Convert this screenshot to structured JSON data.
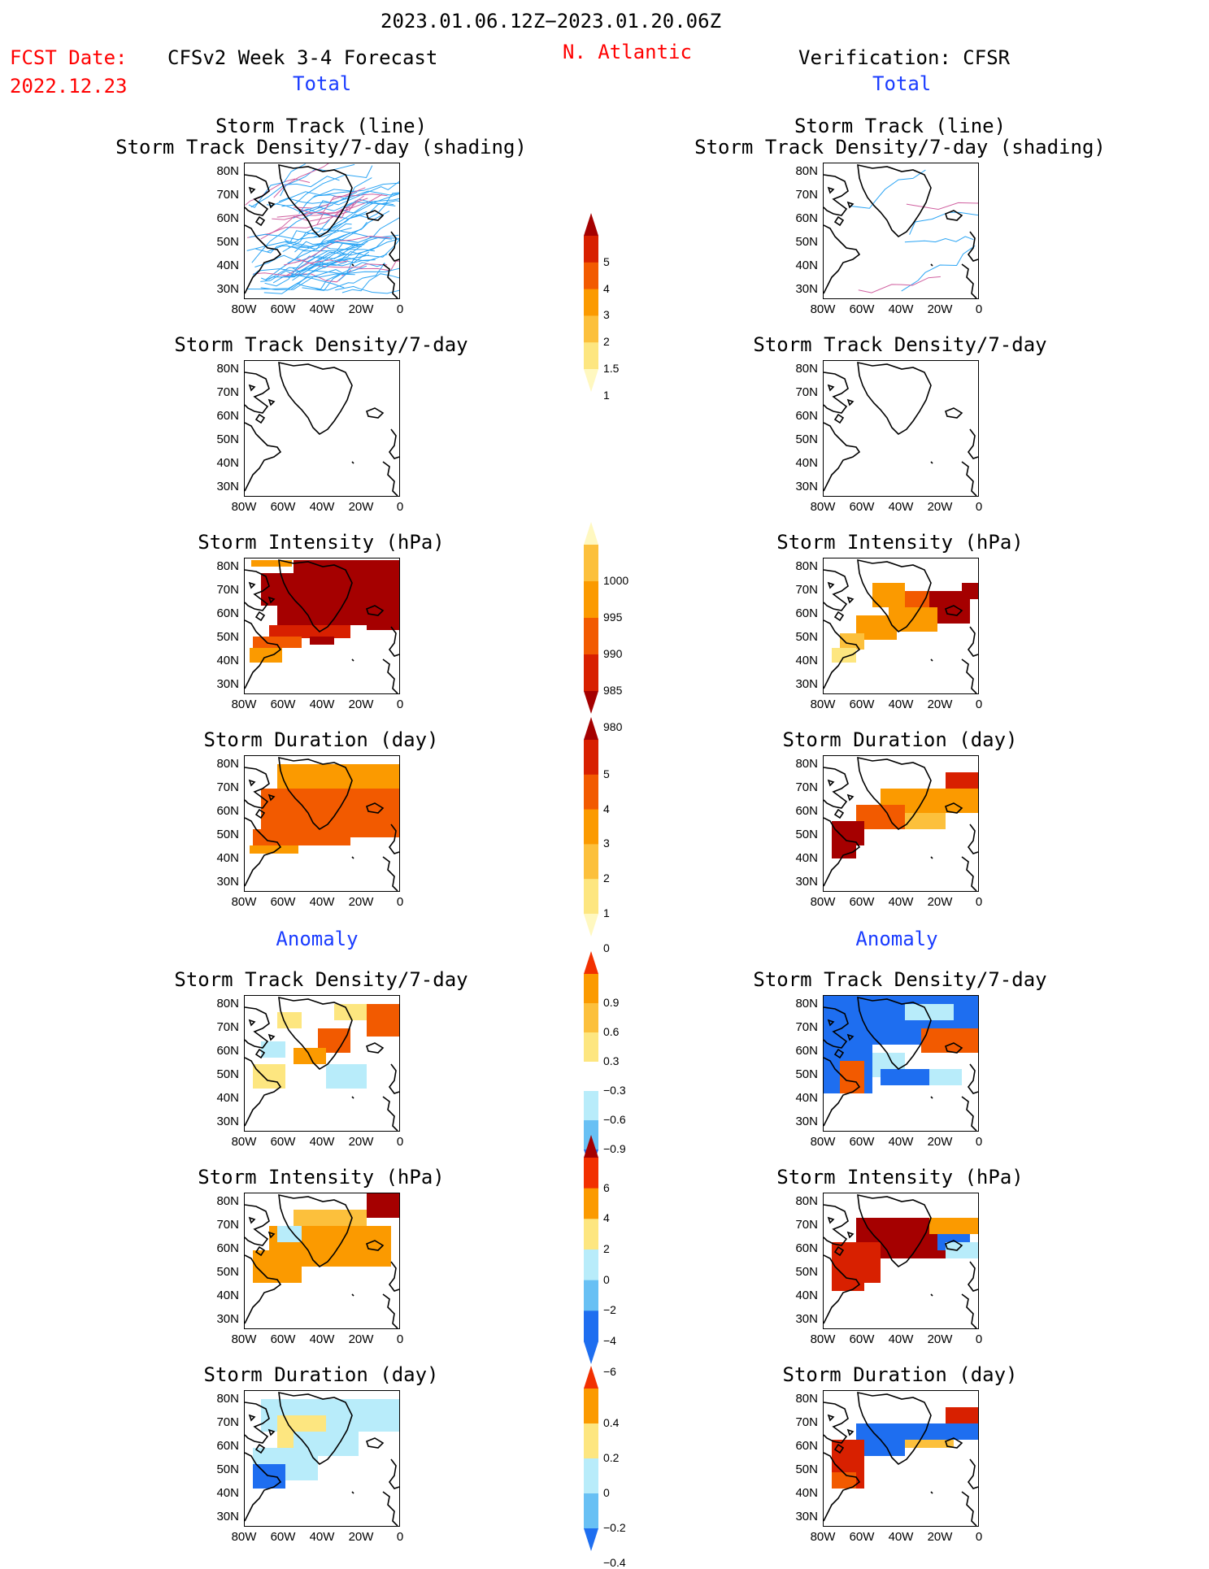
{
  "header": {
    "date_range": "2023.01.06.12Z−2023.01.20.06Z",
    "fcst_label": "FCST Date:",
    "fcst_date": "2022.12.23",
    "model_title": "CFSv2 Week 3-4 Forecast",
    "region": "N. Atlantic",
    "verification": "Verification: CFSR",
    "left_total": "Total",
    "right_total": "Total"
  },
  "section_labels": {
    "anomaly_left": "Anomaly",
    "anomaly_right": "Anomaly"
  },
  "axis": {
    "lat_labels": [
      "80N",
      "70N",
      "60N",
      "50N",
      "40N",
      "30N"
    ],
    "lon_labels": [
      "80W",
      "60W",
      "40W",
      "20W",
      "0"
    ]
  },
  "panels": [
    {
      "id": "total-track",
      "title_line1": "Storm Track (line)",
      "title_line2": "Storm Track Density/7-day (shading)"
    },
    {
      "id": "total-density",
      "title_line1": "",
      "title_line2": "Storm Track Density/7-day"
    },
    {
      "id": "total-intensity",
      "title_line1": "",
      "title_line2": "Storm Intensity (hPa)"
    },
    {
      "id": "total-duration",
      "title_line1": "",
      "title_line2": "Storm Duration (day)"
    },
    {
      "id": "anom-density",
      "title_line1": "",
      "title_line2": "Storm Track Density/7-day"
    },
    {
      "id": "anom-intensity",
      "title_line1": "",
      "title_line2": "Storm Intensity (hPa)"
    },
    {
      "id": "anom-duration",
      "title_line1": "",
      "title_line2": "Storm Duration (day)"
    }
  ],
  "colorbars": [
    {
      "id": "cb-density",
      "labels": [
        "5",
        "4",
        "3",
        "2",
        "1.5",
        "1"
      ],
      "colors": [
        "#a50000",
        "#d82000",
        "#f25a00",
        "#fb9a00",
        "#fcc03c",
        "#fde680",
        "#fff8c0"
      ]
    },
    {
      "id": "cb-intensity",
      "labels": [
        "1000",
        "995",
        "990",
        "985",
        "980"
      ],
      "colors": [
        "#fff8c0",
        "#fcc03c",
        "#fb9a00",
        "#f25a00",
        "#d82000",
        "#a50000"
      ]
    },
    {
      "id": "cb-duration",
      "labels": [
        "5",
        "4",
        "3",
        "2",
        "1",
        "0"
      ],
      "colors": [
        "#a50000",
        "#d82000",
        "#f25a00",
        "#fb9a00",
        "#fcc03c",
        "#fde680",
        "#fff8c0"
      ]
    },
    {
      "id": "cb-anom-density",
      "labels": [
        "0.9",
        "0.6",
        "0.3",
        "−0.3",
        "−0.6",
        "−0.9"
      ],
      "colors": [
        "#f23000",
        "#fb9a00",
        "#fcc03c",
        "#fde680",
        "#ffffff",
        "#b8ecfa",
        "#68c0f4",
        "#1e6ef0"
      ]
    },
    {
      "id": "cb-anom-intensity",
      "labels": [
        "6",
        "4",
        "2",
        "0",
        "−2",
        "−4",
        "−6"
      ],
      "colors": [
        "#a50000",
        "#f23000",
        "#fb9a00",
        "#fde680",
        "#b8ecfa",
        "#68c0f4",
        "#1e6ef0",
        "#1e6ef0"
      ]
    },
    {
      "id": "cb-anom-duration",
      "labels": [
        "0.4",
        "0.2",
        "0",
        "−0.2",
        "−0.4"
      ],
      "colors": [
        "#f23000",
        "#fb9a00",
        "#fde680",
        "#b8ecfa",
        "#68c0f4",
        "#1e6ef0"
      ]
    }
  ],
  "colors": {
    "dark_red": "#a50000",
    "red": "#d82000",
    "orange_red": "#f25a00",
    "orange": "#fb9a00",
    "light_orange": "#fcc03c",
    "yellow": "#fde680",
    "blue": "#1e6ef0",
    "light_blue": "#b8ecfa",
    "track_blue": "#2aa4f4"
  }
}
